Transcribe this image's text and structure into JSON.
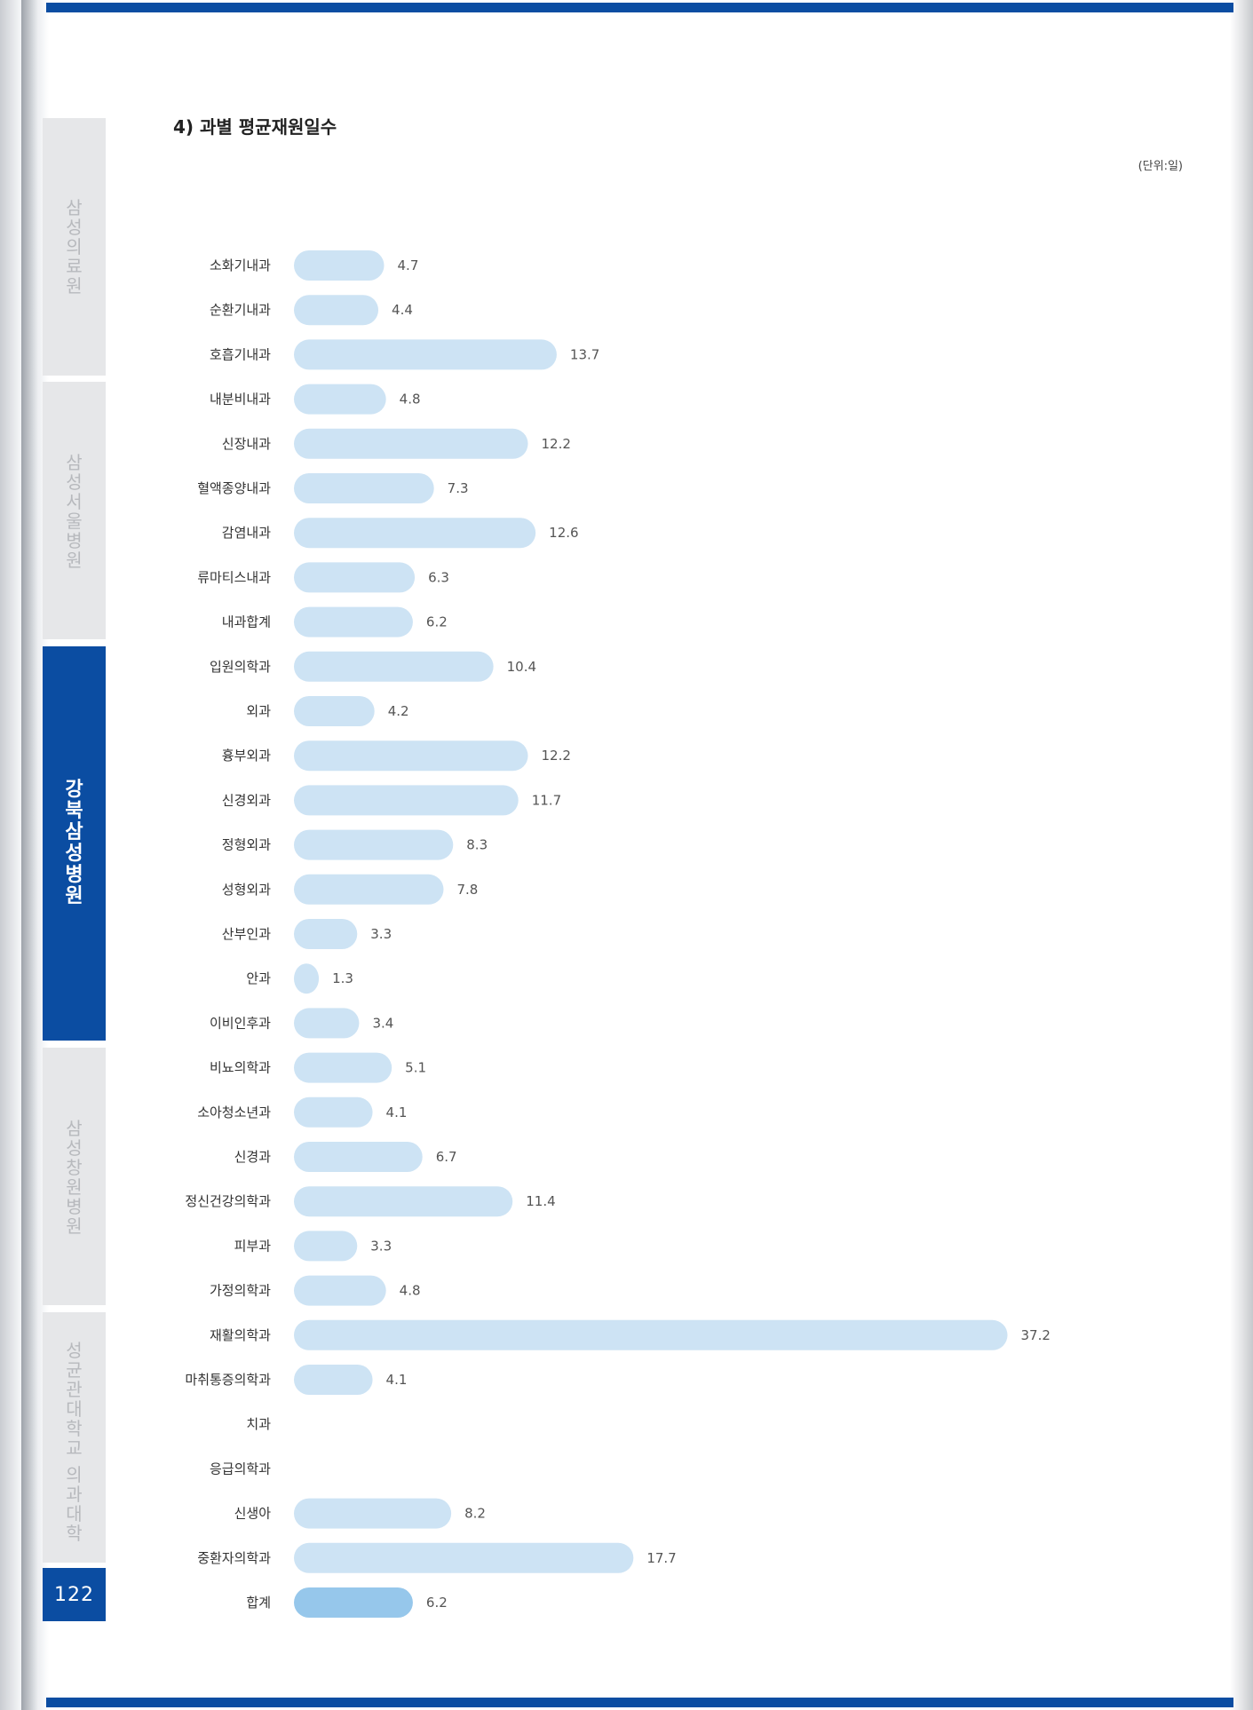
{
  "section_title": "4) 과별 평균재원일수",
  "unit": "(단위:일)",
  "page_number": "122",
  "side_tabs": [
    {
      "label": "삼성의료원",
      "active": false
    },
    {
      "label": "삼성서울병원",
      "active": false
    },
    {
      "label": "강북삼성병원",
      "active": true
    },
    {
      "label": "삼성창원병원",
      "active": false
    },
    {
      "label": "성균관대학교 의과대학",
      "active": false
    }
  ],
  "colors": {
    "bar": "#cde3f4",
    "total_bar": "#96c7eb",
    "accent": "#0b4da2"
  },
  "chart_data": {
    "type": "bar",
    "orientation": "horizontal",
    "title": "4) 과별 평균재원일수",
    "unit": "(단위:일)",
    "categories": [
      "소화기내과",
      "순환기내과",
      "호흡기내과",
      "내분비내과",
      "신장내과",
      "혈액종양내과",
      "감염내과",
      "류마티스내과",
      "내과합계",
      "입원의학과",
      "외과",
      "흉부외과",
      "신경외과",
      "정형외과",
      "성형외과",
      "산부인과",
      "안과",
      "이비인후과",
      "비뇨의학과",
      "소아청소년과",
      "신경과",
      "정신건강의학과",
      "피부과",
      "가정의학과",
      "재활의학과",
      "마취통증의학과",
      "치과",
      "응급의학과",
      "신생아",
      "중환자의학과",
      "합계"
    ],
    "value_labels": [
      "4.7",
      "4.4",
      "13.7",
      "4.8",
      "12.2",
      "7.3",
      "12.6",
      "6.3",
      "6.2",
      "10.4",
      "4.2",
      "12.2",
      "11.7",
      "8.3",
      "7.8",
      "3.3",
      "1.3",
      "3.4",
      "5.1",
      "4.1",
      "6.7",
      "11.4",
      "3.3",
      "4.8",
      "37.2",
      "4.1",
      "",
      "",
      "8.2",
      "17.7",
      "6.2"
    ],
    "values": [
      4.7,
      4.4,
      13.7,
      4.8,
      12.2,
      7.3,
      12.6,
      6.3,
      6.2,
      10.4,
      4.2,
      12.2,
      11.7,
      8.3,
      7.8,
      3.3,
      1.3,
      3.4,
      5.1,
      4.1,
      6.7,
      11.4,
      3.3,
      4.8,
      37.2,
      4.1,
      null,
      null,
      8.2,
      17.7,
      6.2
    ],
    "highlight": "합계"
  }
}
